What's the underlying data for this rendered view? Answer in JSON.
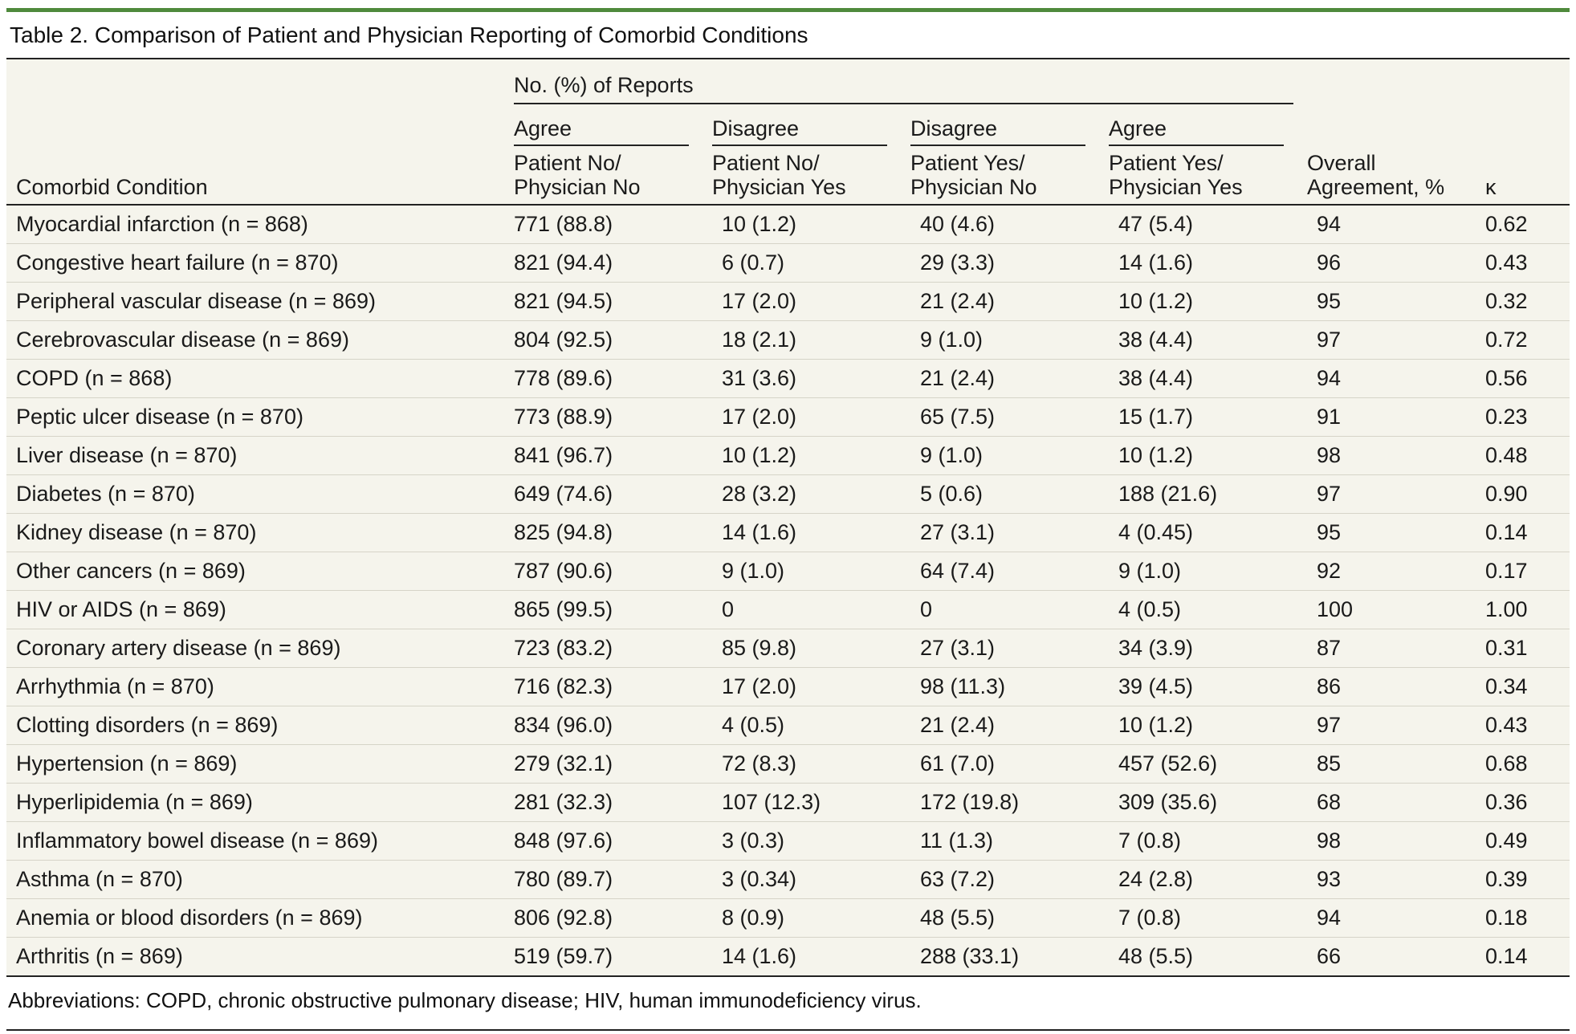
{
  "title": "Table 2. Comparison of Patient and Physician Reporting of Comorbid Conditions",
  "header": {
    "group": "No. (%) of Reports",
    "sub": [
      "Agree",
      "Disagree",
      "Disagree",
      "Agree"
    ],
    "detail": [
      [
        "Patient No/",
        "Physician No"
      ],
      [
        "Patient No/",
        "Physician Yes"
      ],
      [
        "Patient Yes/",
        "Physician No"
      ],
      [
        "Patient Yes/",
        "Physician Yes"
      ]
    ],
    "condition": "Comorbid Condition",
    "overall": [
      "Overall",
      "Agreement, %"
    ],
    "kappa": "κ"
  },
  "rows": [
    {
      "condition": "Myocardial infarction (n = 868)",
      "nn": "771 (88.8)",
      "ny": "10 (1.2)",
      "yn": "40 (4.6)",
      "yy": "47 (5.4)",
      "agree": "94",
      "kappa": "0.62"
    },
    {
      "condition": "Congestive heart failure (n = 870)",
      "nn": "821 (94.4)",
      "ny": "6 (0.7)",
      "yn": "29 (3.3)",
      "yy": "14 (1.6)",
      "agree": "96",
      "kappa": "0.43"
    },
    {
      "condition": "Peripheral vascular disease (n = 869)",
      "nn": "821 (94.5)",
      "ny": "17 (2.0)",
      "yn": "21 (2.4)",
      "yy": "10 (1.2)",
      "agree": "95",
      "kappa": "0.32"
    },
    {
      "condition": "Cerebrovascular disease (n = 869)",
      "nn": "804 (92.5)",
      "ny": "18 (2.1)",
      "yn": "9 (1.0)",
      "yy": "38 (4.4)",
      "agree": "97",
      "kappa": "0.72"
    },
    {
      "condition": "COPD (n = 868)",
      "nn": "778 (89.6)",
      "ny": "31 (3.6)",
      "yn": "21 (2.4)",
      "yy": "38 (4.4)",
      "agree": "94",
      "kappa": "0.56"
    },
    {
      "condition": "Peptic ulcer disease (n = 870)",
      "nn": "773 (88.9)",
      "ny": "17 (2.0)",
      "yn": "65 (7.5)",
      "yy": "15 (1.7)",
      "agree": "91",
      "kappa": "0.23"
    },
    {
      "condition": "Liver disease (n = 870)",
      "nn": "841 (96.7)",
      "ny": "10 (1.2)",
      "yn": "9 (1.0)",
      "yy": "10 (1.2)",
      "agree": "98",
      "kappa": "0.48"
    },
    {
      "condition": "Diabetes (n = 870)",
      "nn": "649 (74.6)",
      "ny": "28 (3.2)",
      "yn": "5 (0.6)",
      "yy": "188 (21.6)",
      "agree": "97",
      "kappa": "0.90"
    },
    {
      "condition": "Kidney disease (n = 870)",
      "nn": "825 (94.8)",
      "ny": "14 (1.6)",
      "yn": "27 (3.1)",
      "yy": "4 (0.45)",
      "agree": "95",
      "kappa": "0.14"
    },
    {
      "condition": "Other cancers (n = 869)",
      "nn": "787 (90.6)",
      "ny": "9 (1.0)",
      "yn": "64 (7.4)",
      "yy": "9 (1.0)",
      "agree": "92",
      "kappa": "0.17"
    },
    {
      "condition": "HIV or AIDS (n = 869)",
      "nn": "865 (99.5)",
      "ny": "0",
      "yn": "0",
      "yy": "4 (0.5)",
      "agree": "100",
      "kappa": "1.00"
    },
    {
      "condition": "Coronary artery disease (n = 869)",
      "nn": "723 (83.2)",
      "ny": "85 (9.8)",
      "yn": "27 (3.1)",
      "yy": "34 (3.9)",
      "agree": "87",
      "kappa": "0.31"
    },
    {
      "condition": "Arrhythmia (n = 870)",
      "nn": "716 (82.3)",
      "ny": "17 (2.0)",
      "yn": "98 (11.3)",
      "yy": "39 (4.5)",
      "agree": "86",
      "kappa": "0.34"
    },
    {
      "condition": "Clotting disorders (n = 869)",
      "nn": "834 (96.0)",
      "ny": "4 (0.5)",
      "yn": "21 (2.4)",
      "yy": "10 (1.2)",
      "agree": "97",
      "kappa": "0.43"
    },
    {
      "condition": "Hypertension (n = 869)",
      "nn": "279 (32.1)",
      "ny": "72 (8.3)",
      "yn": "61 (7.0)",
      "yy": "457 (52.6)",
      "agree": "85",
      "kappa": "0.68"
    },
    {
      "condition": "Hyperlipidemia (n = 869)",
      "nn": "281 (32.3)",
      "ny": "107 (12.3)",
      "yn": "172 (19.8)",
      "yy": "309 (35.6)",
      "agree": "68",
      "kappa": "0.36"
    },
    {
      "condition": "Inflammatory bowel disease (n = 869)",
      "nn": "848 (97.6)",
      "ny": "3 (0.3)",
      "yn": "11 (1.3)",
      "yy": "7 (0.8)",
      "agree": "98",
      "kappa": "0.49"
    },
    {
      "condition": "Asthma (n = 870)",
      "nn": "780 (89.7)",
      "ny": "3 (0.34)",
      "yn": "63 (7.2)",
      "yy": "24 (2.8)",
      "agree": "93",
      "kappa": "0.39"
    },
    {
      "condition": "Anemia or blood disorders (n = 869)",
      "nn": "806 (92.8)",
      "ny": "8 (0.9)",
      "yn": "48 (5.5)",
      "yy": "7 (0.8)",
      "agree": "94",
      "kappa": "0.18"
    },
    {
      "condition": "Arthritis (n = 869)",
      "nn": "519 (59.7)",
      "ny": "14 (1.6)",
      "yn": "288 (33.1)",
      "yy": "48 (5.5)",
      "agree": "66",
      "kappa": "0.14"
    }
  ],
  "footnote": "Abbreviations: COPD, chronic obstructive pulmonary disease; HIV, human immunodeficiency virus.",
  "colors": {
    "accent_rule": "#4f8a3c",
    "table_bg": "#f5f4ec"
  }
}
